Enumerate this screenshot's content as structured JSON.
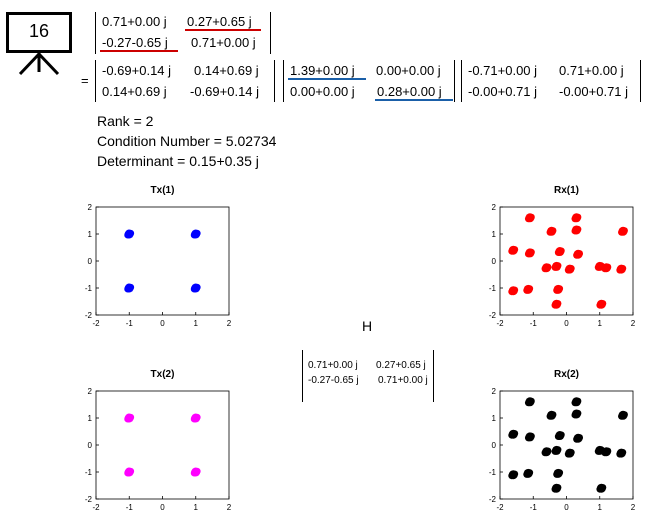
{
  "slide_badge": {
    "number": "16"
  },
  "matrix_H": {
    "rows": [
      [
        "0.71+0.00 j",
        "0.27+0.65 j"
      ],
      [
        "-0.27-0.65 j",
        "0.71+0.00 j"
      ]
    ],
    "highlight_color": "#cc0000"
  },
  "equals": "=",
  "svd": {
    "U": [
      [
        "-0.69+0.14 j",
        "0.14+0.69 j"
      ],
      [
        "0.14+0.69 j",
        "-0.69+0.14 j"
      ]
    ],
    "S": [
      [
        "1.39+0.00 j",
        "0.00+0.00 j"
      ],
      [
        "0.00+0.00 j",
        "0.28+0.00 j"
      ]
    ],
    "V": [
      [
        "-0.71+0.00 j",
        "0.71+0.00 j"
      ],
      [
        "-0.00+0.71 j",
        "-0.00+0.71 j"
      ]
    ],
    "highlight_color": "#1a5fa8"
  },
  "stats": {
    "rank": "Rank = 2",
    "condition": "Condition Number = 5.02734",
    "determinant": "Determinant = 0.15+0.35 j"
  },
  "center_label": "H",
  "center_matrix": [
    [
      "0.71+0.00 j",
      "0.27+0.65 j"
    ],
    [
      "-0.27-0.65 j",
      "0.71+0.00 j"
    ]
  ],
  "plots": [
    {
      "title": "Tx(1)",
      "color": "#0000ff",
      "points": [
        [
          -1,
          1
        ],
        [
          1,
          1
        ],
        [
          -1,
          -1
        ],
        [
          1,
          -1
        ]
      ]
    },
    {
      "title": "Rx(1)",
      "color": "#ff0000",
      "points": [
        [
          -1.1,
          1.6
        ],
        [
          0.3,
          1.6
        ],
        [
          1.7,
          1.1
        ],
        [
          0.3,
          1.15
        ],
        [
          -0.45,
          1.1
        ],
        [
          -1.6,
          0.4
        ],
        [
          -1.1,
          0.3
        ],
        [
          -0.2,
          0.35
        ],
        [
          0.35,
          0.25
        ],
        [
          -0.3,
          -0.2
        ],
        [
          0.1,
          -0.3
        ],
        [
          -0.6,
          -0.25
        ],
        [
          1.0,
          -0.2
        ],
        [
          1.2,
          -0.25
        ],
        [
          1.65,
          -0.3
        ],
        [
          -1.6,
          -1.1
        ],
        [
          -1.15,
          -1.05
        ],
        [
          -0.25,
          -1.05
        ],
        [
          -0.3,
          -1.6
        ],
        [
          1.05,
          -1.6
        ]
      ]
    },
    {
      "title": "Tx(2)",
      "color": "#ff00ff",
      "points": [
        [
          -1,
          1
        ],
        [
          1,
          1
        ],
        [
          -1,
          -1
        ],
        [
          1,
          -1
        ]
      ]
    },
    {
      "title": "Rx(2)",
      "color": "#000000",
      "points": [
        [
          -1.1,
          1.6
        ],
        [
          0.3,
          1.6
        ],
        [
          1.7,
          1.1
        ],
        [
          0.3,
          1.15
        ],
        [
          -0.45,
          1.1
        ],
        [
          -1.6,
          0.4
        ],
        [
          -1.1,
          0.3
        ],
        [
          -0.2,
          0.35
        ],
        [
          0.35,
          0.25
        ],
        [
          -0.3,
          -0.2
        ],
        [
          0.1,
          -0.3
        ],
        [
          -0.6,
          -0.25
        ],
        [
          1.0,
          -0.2
        ],
        [
          1.2,
          -0.25
        ],
        [
          1.65,
          -0.3
        ],
        [
          -1.6,
          -1.1
        ],
        [
          -1.15,
          -1.05
        ],
        [
          -0.25,
          -1.05
        ],
        [
          -0.3,
          -1.6
        ],
        [
          1.05,
          -1.6
        ]
      ]
    }
  ],
  "axis": {
    "min": -2,
    "max": 2,
    "ticks": [
      "-2",
      "-1",
      "0",
      "1",
      "2"
    ]
  }
}
